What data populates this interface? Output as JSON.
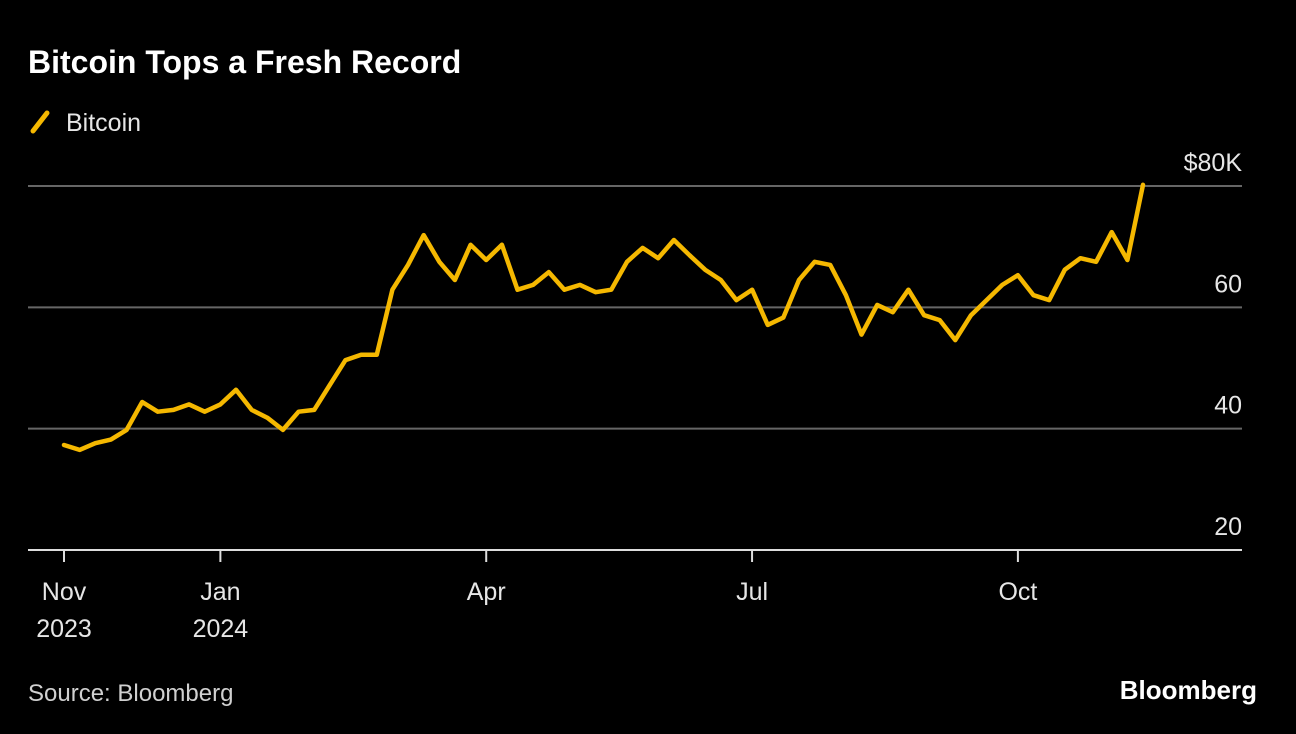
{
  "chart_data": {
    "type": "line",
    "title": "Bitcoin Tops a Fresh Record",
    "source": "Source: Bloomberg",
    "brand": "Bloomberg",
    "categories": [
      "Nov\n2023",
      null,
      null,
      null,
      null,
      null,
      null,
      null,
      null,
      null,
      "Jan\n2024",
      null,
      null,
      null,
      null,
      null,
      null,
      null,
      null,
      null,
      null,
      null,
      null,
      null,
      null,
      null,
      null,
      "Apr",
      null,
      null,
      null,
      null,
      null,
      null,
      null,
      null,
      null,
      null,
      null,
      null,
      null,
      null,
      null,
      null,
      "Jul",
      null,
      null,
      null,
      null,
      null,
      null,
      null,
      null,
      null,
      null,
      null,
      null,
      null,
      null,
      null,
      null,
      "Oct",
      null,
      null,
      null,
      null,
      null,
      null,
      null,
      null
    ],
    "series": [
      {
        "name": "Bitcoin",
        "color": "#f5b800",
        "values": [
          37.3,
          36.5,
          37.6,
          38.2,
          39.8,
          44.4,
          42.8,
          43.1,
          44,
          42.8,
          44,
          46.4,
          43.1,
          41.8,
          39.8,
          42.8,
          43.1,
          47.2,
          51.3,
          52.2,
          52.2,
          62.9,
          67,
          71.9,
          67.5,
          64.5,
          70.3,
          67.8,
          70.3,
          62.9,
          63.7,
          65.8,
          62.9,
          63.7,
          62.5,
          62.9,
          67.5,
          69.8,
          68.1,
          71.1,
          68.6,
          66.2,
          64.5,
          61.2,
          62.9,
          57.1,
          58.3,
          64.5,
          67.5,
          67,
          62,
          55.5,
          60.4,
          59.2,
          62.9,
          58.7,
          57.9,
          54.6,
          58.7,
          61.2,
          63.7,
          65.3,
          62,
          61.2,
          66.2,
          68.1,
          67.5,
          72.4,
          67.8,
          80.2
        ]
      }
    ],
    "ylim": [
      20,
      80
    ],
    "yticks": [
      20,
      40,
      60,
      {
        "value": 80,
        "label": "$80K"
      }
    ],
    "grid": true
  }
}
